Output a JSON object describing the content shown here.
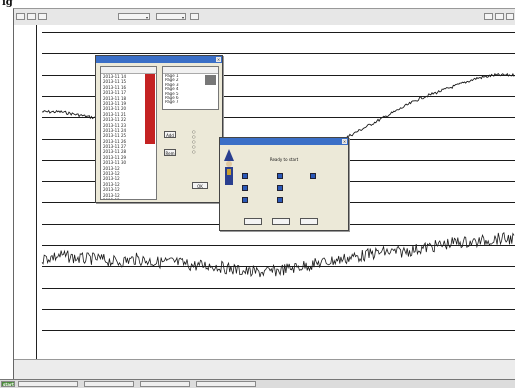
{
  "heading": "ig",
  "toolbar": {
    "buttons": [
      "",
      "",
      "",
      "",
      "",
      "",
      ""
    ],
    "field_1": "",
    "field_2": ""
  },
  "y_ticks": [
    "",
    "",
    "",
    "",
    "",
    "",
    "",
    "",
    "",
    "",
    "",
    "",
    "",
    "",
    ""
  ],
  "left_dialog": {
    "title": "",
    "list_header": "",
    "list_items": [
      "2013-11 14",
      "2013-11 15",
      "2013-11 16",
      "2013-11 17",
      "2013-11 18",
      "2013-11 19",
      "2013-11 20",
      "2013-11 21",
      "2013-11 22",
      "2013-11 23",
      "2013-11 24",
      "2013-11 25",
      "2013-11 26",
      "2013-11 27",
      "2013-11 28",
      "2013-11 29",
      "2013-11 30",
      "2013-12",
      "2013-12",
      "2013-12",
      "2013-12",
      "2013-12",
      "2013-12",
      "2013-12"
    ],
    "right_header": "",
    "right_items": [
      "Page 1",
      "Page 2",
      "Page 3",
      "Page 4",
      "Page 5",
      "Page 6",
      "Page 7"
    ],
    "add_label": "Add",
    "remove_label": "Rem",
    "side_label": "",
    "ok_label": "OK"
  },
  "ready_dialog": {
    "title": "",
    "line_1": "Ready to start",
    "line_2": "",
    "options": [
      "",
      "",
      "",
      "",
      "",
      "",
      "",
      ""
    ],
    "buttons": [
      "",
      "",
      ""
    ]
  },
  "status_left": [
    "",
    ""
  ],
  "status_right": [
    "",
    "",
    "",
    "",
    ""
  ],
  "taskbar": {
    "start": "start",
    "items": [
      "",
      "",
      "",
      ""
    ],
    "clock": ""
  },
  "colors": {
    "plot_line": "#1b1b1b",
    "tick_label": "#1a56c8",
    "dialog_title": "#3b6fc7",
    "list_marker": "#c42222",
    "checkbox": "#2b59b8"
  },
  "chart_data": {
    "type": "line",
    "title": "",
    "xlabel": "",
    "ylabel": "",
    "series": [
      {
        "values": [
          0.74,
          0.74,
          0.73,
          0.72,
          0.71,
          0.7,
          0.69,
          0.68,
          0.66,
          0.64,
          0.62,
          0.61,
          0.6,
          0.6,
          0.61,
          0.63,
          0.66,
          0.69,
          0.72,
          0.75,
          0.78,
          0.8,
          0.82,
          0.84,
          0.85,
          0.85
        ]
      },
      {
        "values": [
          0.3,
          0.31,
          0.3,
          0.3,
          0.29,
          0.3,
          0.29,
          0.29,
          0.28,
          0.28,
          0.27,
          0.26,
          0.26,
          0.27,
          0.28,
          0.29,
          0.3,
          0.31,
          0.32,
          0.32,
          0.33,
          0.34,
          0.35,
          0.35,
          0.36,
          0.36
        ]
      }
    ],
    "grid": true,
    "legend": "none"
  }
}
